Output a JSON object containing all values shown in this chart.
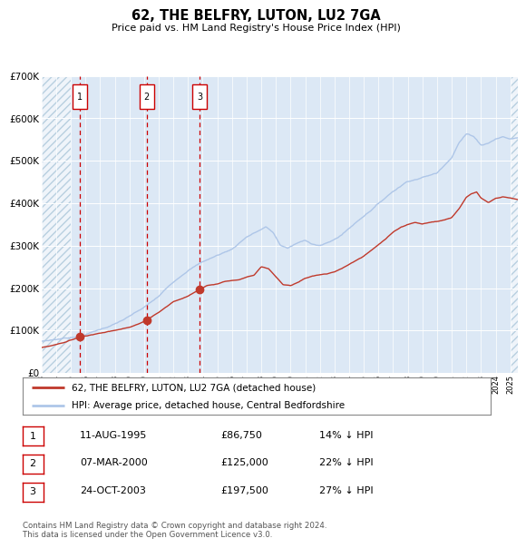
{
  "title": "62, THE BELFRY, LUTON, LU2 7GA",
  "subtitle": "Price paid vs. HM Land Registry's House Price Index (HPI)",
  "hpi_color": "#aec6e8",
  "price_color": "#c0392b",
  "plot_bg_color": "#dce8f5",
  "ylim": [
    0,
    700000
  ],
  "yticks": [
    0,
    100000,
    200000,
    300000,
    400000,
    500000,
    600000,
    700000
  ],
  "ytick_labels": [
    "£0",
    "£100K",
    "£200K",
    "£300K",
    "£400K",
    "£500K",
    "£600K",
    "£700K"
  ],
  "vlines": [
    1995.6,
    2000.18,
    2003.81
  ],
  "vline_labels": [
    "1",
    "2",
    "3"
  ],
  "sale_points": [
    [
      1995.6,
      86750
    ],
    [
      2000.18,
      125000
    ],
    [
      2003.81,
      197500
    ]
  ],
  "legend_price_label": "62, THE BELFRY, LUTON, LU2 7GA (detached house)",
  "legend_hpi_label": "HPI: Average price, detached house, Central Bedfordshire",
  "table_rows": [
    {
      "num": "1",
      "date": "11-AUG-1995",
      "price": "£86,750",
      "pct": "14% ↓ HPI"
    },
    {
      "num": "2",
      "date": "07-MAR-2000",
      "price": "£125,000",
      "pct": "22% ↓ HPI"
    },
    {
      "num": "3",
      "date": "24-OCT-2003",
      "price": "£197,500",
      "pct": "27% ↓ HPI"
    }
  ],
  "footnote": "Contains HM Land Registry data © Crown copyright and database right 2024.\nThis data is licensed under the Open Government Licence v3.0.",
  "xmin": 1993.0,
  "xmax": 2025.5,
  "hatch_xright": 2025.0,
  "hatch_xleft_end": 1995.0
}
